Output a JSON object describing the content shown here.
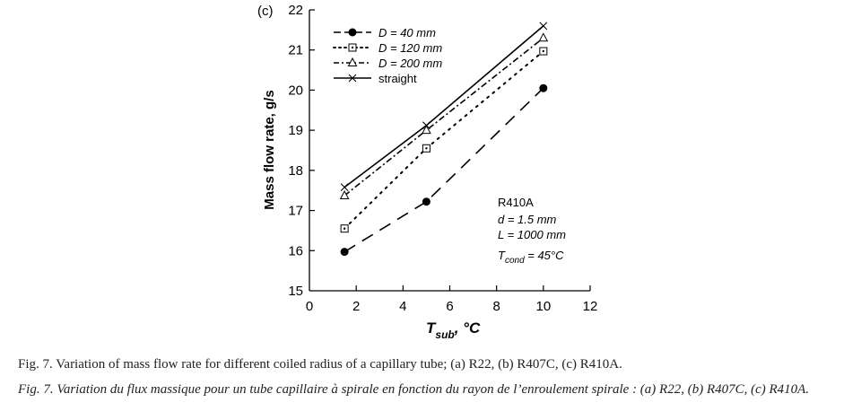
{
  "chart_data": {
    "type": "line",
    "panel_label": "(c)",
    "xlabel_main": "T",
    "xlabel_sub": "sub",
    "xlabel_unit": ", °C",
    "ylabel": "Mass flow rate, g/s",
    "xlim": [
      0,
      12
    ],
    "ylim": [
      15,
      22
    ],
    "x_ticks": [
      "0",
      "2",
      "4",
      "6",
      "8",
      "10",
      "12"
    ],
    "y_ticks": [
      "15",
      "16",
      "17",
      "18",
      "19",
      "20",
      "21",
      "22"
    ],
    "grid": false,
    "legend_position": "top-left",
    "series": [
      {
        "name": "D = 40 mm",
        "marker": "filled-circle",
        "dash": "long-dash",
        "x": [
          1.5,
          5.0,
          10.0
        ],
        "y": [
          15.97,
          17.22,
          20.05
        ]
      },
      {
        "name": "D = 120 mm",
        "marker": "square-dot",
        "dash": "dotted",
        "x": [
          1.5,
          5.0,
          10.0
        ],
        "y": [
          16.55,
          18.55,
          20.97
        ]
      },
      {
        "name": "D = 200 mm",
        "marker": "triangle",
        "dash": "dash-dot",
        "x": [
          1.5,
          5.0,
          10.0
        ],
        "y": [
          17.37,
          19.0,
          21.3
        ]
      },
      {
        "name": "straight",
        "marker": "x",
        "dash": "solid",
        "x": [
          1.5,
          5.0,
          10.0
        ],
        "y": [
          17.58,
          19.12,
          21.6
        ]
      }
    ],
    "annotations": {
      "refrigerant": "R410A",
      "diameter": "d = 1.5 mm",
      "length": "L = 1000 mm",
      "tcond_main": "T",
      "tcond_sub": "cond",
      "tcond_value": " = 45°C"
    }
  },
  "caption": {
    "english": "Fig. 7.  Variation of mass flow rate for different coiled radius of a capillary tube; (a) R22, (b) R407C, (c) R410A.",
    "french": "Fig. 7.  Variation du flux massique pour un tube capillaire à spirale en fonction du rayon de l’enroulement spirale : (a) R22, (b) R407C, (c) R410A."
  }
}
